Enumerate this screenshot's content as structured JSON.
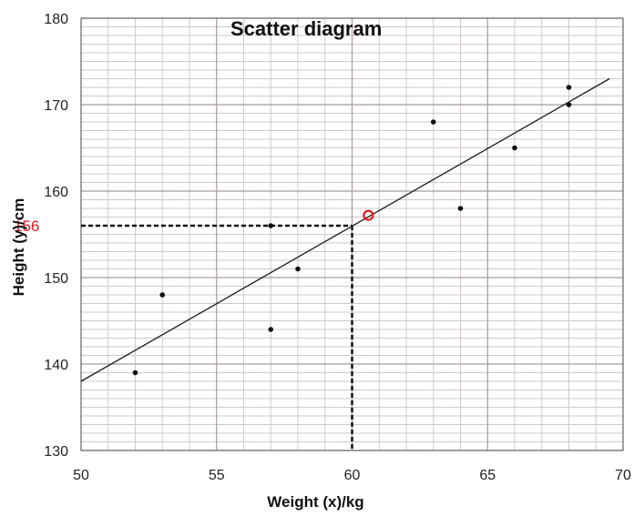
{
  "chart_data": {
    "type": "scatter",
    "title": "Scatter diagram",
    "xlabel": "Weight (x)/kg",
    "ylabel": "Height (y)/cm",
    "xlim": [
      50,
      70
    ],
    "ylim": [
      130,
      180
    ],
    "x_ticks": [
      50,
      55,
      60,
      65,
      70
    ],
    "y_ticks": [
      130,
      140,
      150,
      160,
      170,
      180
    ],
    "grid": true,
    "points": [
      {
        "x": 52,
        "y": 139
      },
      {
        "x": 53,
        "y": 148
      },
      {
        "x": 57,
        "y": 156
      },
      {
        "x": 57,
        "y": 144
      },
      {
        "x": 58,
        "y": 151
      },
      {
        "x": 63,
        "y": 168
      },
      {
        "x": 64,
        "y": 158
      },
      {
        "x": 66,
        "y": 165
      },
      {
        "x": 68,
        "y": 172
      },
      {
        "x": 68,
        "y": 170
      }
    ],
    "line_of_best_fit": {
      "x": [
        50,
        69.5
      ],
      "y": [
        138,
        173
      ]
    },
    "mean_point": {
      "x": 60.6,
      "y": 157.2
    },
    "reference": {
      "x": 60,
      "y": 156,
      "label": "156"
    },
    "colors": {
      "points": "#111111",
      "line": "#1a1a1a",
      "mean_point": "#e31a1c",
      "reference_label": "#e31a1c",
      "major_grid": "#a99a9a",
      "minor_grid": "#d2c8c8"
    }
  }
}
